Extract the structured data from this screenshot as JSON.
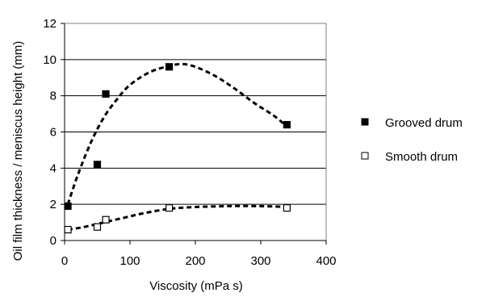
{
  "chart_data": {
    "type": "scatter",
    "xlabel": "Viscosity (mPa s)",
    "ylabel": "Oil film thickness / meniscus height (mm)",
    "xlim": [
      0,
      400
    ],
    "ylim": [
      0,
      12
    ],
    "xticks": [
      0,
      100,
      200,
      300,
      400
    ],
    "yticks": [
      0,
      2,
      4,
      6,
      8,
      10,
      12
    ],
    "grid": "horizontal",
    "legend_position": "right",
    "series": [
      {
        "name": "Grooved drum",
        "marker": "filled-square",
        "points": [
          [
            5,
            1.9
          ],
          [
            50,
            4.2
          ],
          [
            63,
            8.1
          ],
          [
            160,
            9.6
          ],
          [
            340,
            6.4
          ]
        ],
        "trend": [
          [
            5,
            2.0
          ],
          [
            20,
            3.6
          ],
          [
            40,
            5.4
          ],
          [
            60,
            6.8
          ],
          [
            80,
            7.8
          ],
          [
            100,
            8.6
          ],
          [
            130,
            9.3
          ],
          [
            160,
            9.65
          ],
          [
            180,
            9.75
          ],
          [
            200,
            9.6
          ],
          [
            230,
            9.1
          ],
          [
            260,
            8.4
          ],
          [
            290,
            7.6
          ],
          [
            320,
            6.9
          ],
          [
            340,
            6.3
          ]
        ]
      },
      {
        "name": "Smooth drum",
        "marker": "open-square",
        "points": [
          [
            5,
            0.6
          ],
          [
            50,
            0.75
          ],
          [
            63,
            1.15
          ],
          [
            160,
            1.8
          ],
          [
            340,
            1.8
          ]
        ],
        "trend": [
          [
            5,
            0.6
          ],
          [
            30,
            0.75
          ],
          [
            60,
            1.0
          ],
          [
            90,
            1.25
          ],
          [
            120,
            1.5
          ],
          [
            160,
            1.75
          ],
          [
            200,
            1.85
          ],
          [
            250,
            1.9
          ],
          [
            300,
            1.9
          ],
          [
            340,
            1.85
          ]
        ]
      }
    ]
  }
}
